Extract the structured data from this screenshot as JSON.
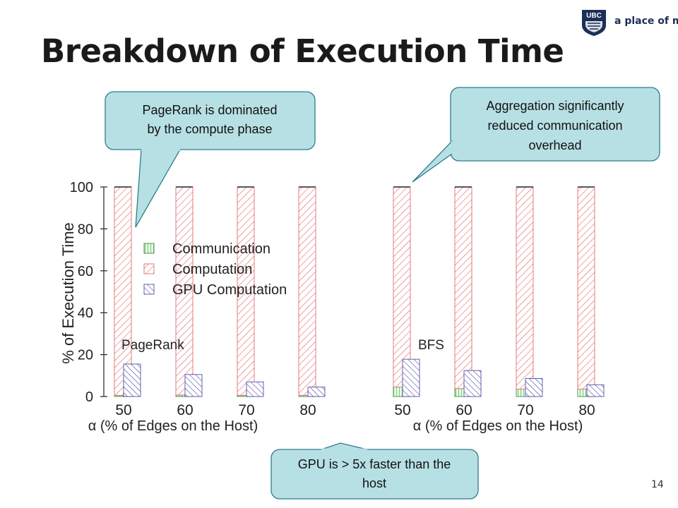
{
  "slide": {
    "title": "Breakdown of Execution Time",
    "logo": {
      "abbr": "UBC",
      "tagline": "a place of mind"
    },
    "page_number": "14"
  },
  "callouts": [
    {
      "id": "pagerank-note",
      "lines": [
        "PageRank is dominated",
        "by the compute phase"
      ]
    },
    {
      "id": "aggregation-note",
      "lines": [
        "Aggregation significantly",
        "reduced communication",
        "overhead"
      ]
    },
    {
      "id": "gpu-note",
      "lines": [
        "GPU is > 5x faster than the",
        "host"
      ]
    }
  ],
  "colors": {
    "communication": "#7fd67f",
    "computation": "#e05a5a",
    "gpu": "#3a3aa0",
    "callout_fill": "#b7e0e5",
    "callout_stroke": "#2d7d8c"
  },
  "legend": {
    "position": "center-left of first chart",
    "items": [
      "Communication",
      "Computation",
      "GPU Computation"
    ]
  },
  "chart_data": [
    {
      "type": "bar",
      "title": "PageRank",
      "xlabel": "α (% of Edges on the Host)",
      "ylabel": "% of Execution Time",
      "ylim": [
        0,
        100
      ],
      "yticks": [
        0,
        20,
        40,
        60,
        80,
        100
      ],
      "categories": [
        "50",
        "60",
        "70",
        "80"
      ],
      "series": [
        {
          "name": "Communication",
          "stack": "host",
          "values": [
            0.5,
            0.7,
            0.6,
            0.6
          ]
        },
        {
          "name": "Computation",
          "stack": "host",
          "values": [
            99.5,
            99.3,
            99.4,
            99.4
          ]
        },
        {
          "name": "GPU Computation",
          "stack": "gpu",
          "values": [
            15.5,
            10.5,
            7,
            4.5
          ]
        }
      ]
    },
    {
      "type": "bar",
      "title": "BFS",
      "xlabel": "α (% of Edges on the Host)",
      "ylabel": "",
      "ylim": [
        0,
        100
      ],
      "yticks": [],
      "categories": [
        "50",
        "60",
        "70",
        "80"
      ],
      "series": [
        {
          "name": "Communication",
          "stack": "host",
          "values": [
            4.5,
            3.8,
            3.5,
            3.5
          ]
        },
        {
          "name": "Computation",
          "stack": "host",
          "values": [
            95.5,
            96.2,
            96.5,
            96.5
          ]
        },
        {
          "name": "GPU Computation",
          "stack": "gpu",
          "values": [
            17.8,
            12.4,
            8.6,
            5.6
          ]
        }
      ]
    }
  ]
}
